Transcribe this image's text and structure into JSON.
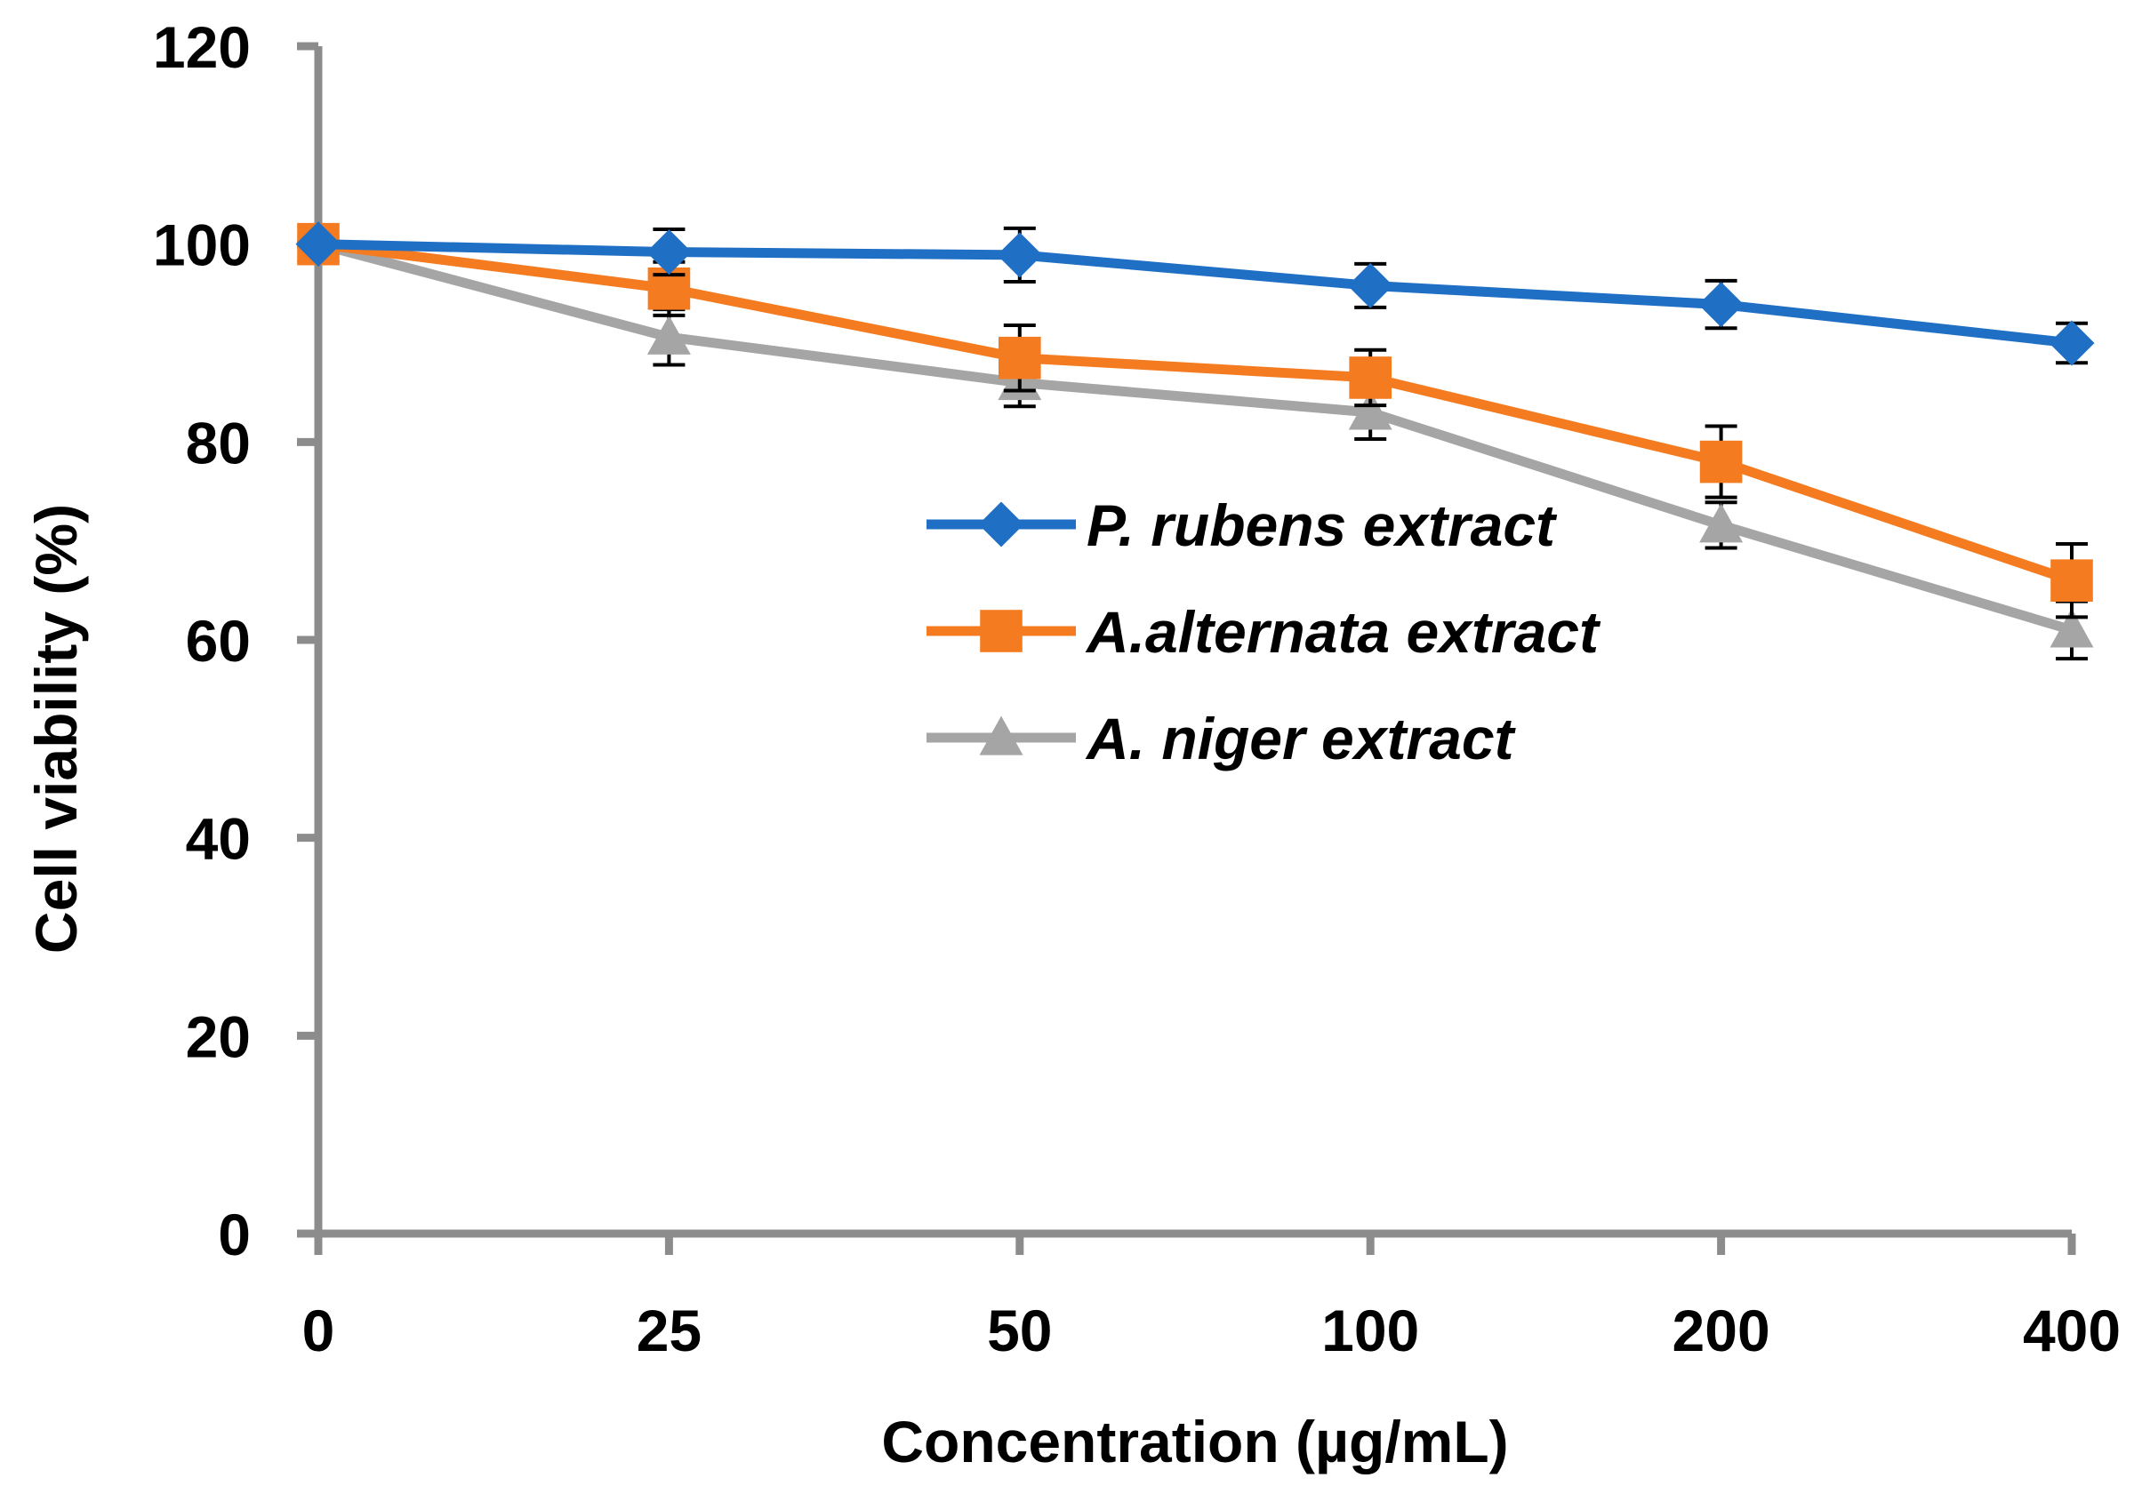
{
  "chart_data": {
    "type": "line",
    "title": "",
    "xlabel": "Concentration (µg/mL)",
    "ylabel": "Cell viability (%)",
    "categories": [
      "0",
      "25",
      "50",
      "100",
      "200",
      "400"
    ],
    "ylim": [
      0,
      120
    ],
    "yticks": [
      0,
      20,
      40,
      60,
      80,
      100,
      120
    ],
    "grid": false,
    "legend_position": "center-right",
    "series": [
      {
        "name": "P. rubens extract",
        "color": "#1F6FC5",
        "marker": "diamond",
        "values": [
          100,
          99.2,
          98.9,
          95.8,
          93.9,
          90.0
        ],
        "errors": [
          0,
          2.3,
          2.7,
          2.2,
          2.4,
          2.0
        ]
      },
      {
        "name": "A.alternata extract",
        "color": "#F47B20",
        "marker": "square",
        "values": [
          100,
          95.5,
          88.5,
          86.5,
          78.0,
          66.0
        ],
        "errors": [
          0,
          2.7,
          3.3,
          2.8,
          3.6,
          3.7
        ]
      },
      {
        "name": "A. niger extract",
        "color": "#A5A5A5",
        "marker": "triangle",
        "values": [
          100,
          90.6,
          86.0,
          83.0,
          71.6,
          61.0
        ],
        "errors": [
          0,
          2.8,
          2.4,
          2.7,
          2.3,
          2.9
        ]
      }
    ]
  }
}
